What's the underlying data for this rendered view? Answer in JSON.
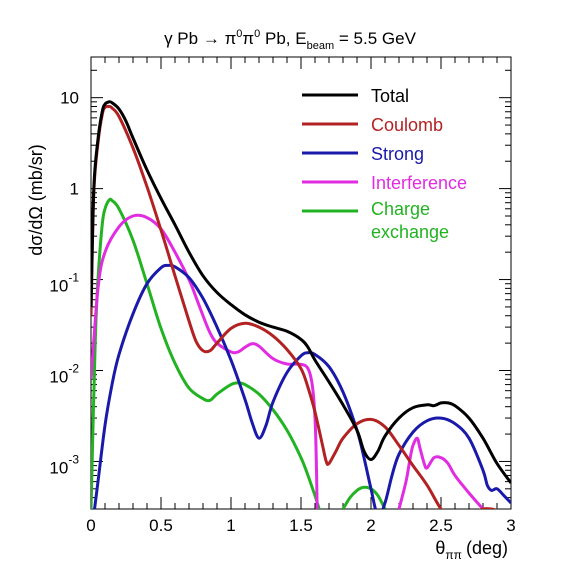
{
  "chart_data": {
    "type": "line",
    "title": {
      "gamma": "γ",
      "pb1": "Pb",
      "arrow": "→",
      "pi1": "π",
      "sup1": "0",
      "pi2": "π",
      "sup2": "0",
      "pb2": "Pb,",
      "e": "E",
      "beam": "beam",
      "rest": "= 5.5 GeV"
    },
    "ylabel": "dσ/dΩ (mb/sr)",
    "xlabel": {
      "theta": "θ",
      "sub": "ππ",
      "unit": "(deg)"
    },
    "xlim": [
      0,
      3
    ],
    "ylim": [
      0.0003,
      28
    ],
    "yscale": "log",
    "x_ticks": [
      {
        "value": 0,
        "label": "0"
      },
      {
        "value": 0.5,
        "label": "0.5"
      },
      {
        "value": 1,
        "label": "1"
      },
      {
        "value": 1.5,
        "label": "1.5"
      },
      {
        "value": 2,
        "label": "2"
      },
      {
        "value": 2.5,
        "label": "2.5"
      },
      {
        "value": 3,
        "label": "3"
      }
    ],
    "y_ticks": [
      {
        "value": 10,
        "label": "10",
        "exp": ""
      },
      {
        "value": 1,
        "label": "1",
        "exp": ""
      },
      {
        "value": 0.1,
        "label": "10",
        "exp": "-1"
      },
      {
        "value": 0.01,
        "label": "10",
        "exp": "-2"
      },
      {
        "value": 0.001,
        "label": "10",
        "exp": "-3"
      }
    ],
    "legend_position": "top-right",
    "series": [
      {
        "name": "Total",
        "color": "#000000",
        "x": [
          0,
          0.02,
          0.05,
          0.08,
          0.1,
          0.13,
          0.15,
          0.2,
          0.25,
          0.3,
          0.4,
          0.5,
          0.6,
          0.7,
          0.8,
          0.9,
          1.0,
          1.1,
          1.2,
          1.3,
          1.4,
          1.5,
          1.55,
          1.6,
          1.7,
          1.8,
          1.9,
          1.95,
          2.0,
          2.05,
          2.1,
          2.2,
          2.3,
          2.4,
          2.45,
          2.5,
          2.55,
          2.6,
          2.7,
          2.8,
          2.9,
          3.0
        ],
        "y": [
          0.05,
          1,
          3.5,
          7,
          8.5,
          9,
          8.8,
          7.5,
          5.5,
          3.6,
          1.6,
          0.78,
          0.4,
          0.2,
          0.11,
          0.072,
          0.053,
          0.041,
          0.034,
          0.03,
          0.027,
          0.022,
          0.018,
          0.013,
          0.0075,
          0.0042,
          0.0022,
          0.0013,
          0.00105,
          0.0013,
          0.0019,
          0.003,
          0.0039,
          0.0042,
          0.0041,
          0.0044,
          0.0044,
          0.0041,
          0.003,
          0.0018,
          0.00095,
          0.00058
        ]
      },
      {
        "name": "Coulomb",
        "color": "#b22222",
        "x": [
          0,
          0.02,
          0.05,
          0.08,
          0.1,
          0.13,
          0.15,
          0.2,
          0.3,
          0.4,
          0.5,
          0.6,
          0.7,
          0.75,
          0.8,
          0.85,
          0.9,
          1.0,
          1.1,
          1.2,
          1.3,
          1.4,
          1.5,
          1.55,
          1.6,
          1.65,
          1.68,
          1.7,
          1.75,
          1.8,
          1.9,
          2.0,
          2.1,
          2.2,
          2.3,
          2.4,
          2.5,
          2.6,
          2.7,
          2.8,
          2.9,
          3.0
        ],
        "y": [
          0.04,
          0.9,
          3.2,
          6.5,
          7.8,
          8,
          7.7,
          6.2,
          2.8,
          1.05,
          0.35,
          0.11,
          0.035,
          0.021,
          0.0165,
          0.0165,
          0.02,
          0.029,
          0.033,
          0.03,
          0.024,
          0.017,
          0.0105,
          0.0065,
          0.0035,
          0.0016,
          0.001,
          0.00095,
          0.0013,
          0.0018,
          0.0026,
          0.0029,
          0.0024,
          0.0015,
          0.0009,
          0.00055,
          0.0003,
          0.0002,
          0.00025,
          0.0003,
          0.00029,
          0.00025
        ]
      },
      {
        "name": "Strong",
        "color": "#1a1aaa",
        "x": [
          0,
          0.05,
          0.1,
          0.15,
          0.2,
          0.3,
          0.4,
          0.5,
          0.55,
          0.6,
          0.7,
          0.8,
          0.9,
          1.0,
          1.1,
          1.15,
          1.2,
          1.25,
          1.3,
          1.4,
          1.5,
          1.55,
          1.6,
          1.7,
          1.8,
          1.9,
          1.95,
          2.0,
          2.05,
          2.1,
          2.15,
          2.2,
          2.3,
          2.4,
          2.5,
          2.6,
          2.7,
          2.8,
          2.83,
          2.86,
          2.9,
          2.95,
          3.0
        ],
        "y": [
          0.00015,
          0.0006,
          0.0025,
          0.007,
          0.015,
          0.042,
          0.09,
          0.135,
          0.143,
          0.138,
          0.105,
          0.062,
          0.03,
          0.013,
          0.0048,
          0.0027,
          0.0018,
          0.0025,
          0.0045,
          0.0095,
          0.0145,
          0.0157,
          0.015,
          0.011,
          0.0058,
          0.0022,
          0.0011,
          0.0005,
          0.00025,
          0.00035,
          0.0007,
          0.0012,
          0.0021,
          0.0028,
          0.003,
          0.0026,
          0.0018,
          0.0008,
          0.00055,
          0.00048,
          0.0005,
          0.00042,
          0.00035
        ]
      },
      {
        "name": "Interference",
        "color": "#e12ce1",
        "x": [
          0,
          0.05,
          0.1,
          0.2,
          0.3,
          0.4,
          0.5,
          0.6,
          0.7,
          0.75,
          0.8,
          0.85,
          0.9,
          1.0,
          1.05,
          1.1,
          1.15,
          1.2,
          1.3,
          1.4,
          1.5,
          1.55,
          1.58,
          1.6,
          1.61,
          1.615
        ],
        "y": [
          0.008,
          0.08,
          0.2,
          0.38,
          0.5,
          0.48,
          0.36,
          0.2,
          0.1,
          0.064,
          0.04,
          0.026,
          0.02,
          0.016,
          0.016,
          0.018,
          0.0197,
          0.0185,
          0.0135,
          0.0118,
          0.0117,
          0.0105,
          0.007,
          0.003,
          0.0009,
          0.0003
        ],
        "x2": [
          2.2,
          2.25,
          2.28,
          2.3,
          2.33,
          2.35,
          2.38,
          2.4,
          2.45,
          2.5,
          2.55,
          2.6,
          2.7,
          2.8,
          2.85
        ],
        "y2": [
          0.0003,
          0.0006,
          0.0011,
          0.0015,
          0.0018,
          0.0014,
          0.00095,
          0.00085,
          0.0011,
          0.0011,
          0.00095,
          0.0007,
          0.00045,
          0.0003,
          0.00025
        ]
      },
      {
        "name": "Charge exchange",
        "color": "#22b322",
        "x": [
          0,
          0.03,
          0.05,
          0.08,
          0.1,
          0.13,
          0.15,
          0.2,
          0.3,
          0.4,
          0.5,
          0.6,
          0.7,
          0.8,
          0.85,
          0.9,
          1.0,
          1.05,
          1.1,
          1.2,
          1.3,
          1.4,
          1.5,
          1.55,
          1.6,
          1.63,
          1.65
        ],
        "y": [
          0.0003,
          0.02,
          0.1,
          0.4,
          0.6,
          0.75,
          0.74,
          0.6,
          0.27,
          0.09,
          0.029,
          0.012,
          0.0064,
          0.0049,
          0.0047,
          0.0055,
          0.007,
          0.0073,
          0.007,
          0.0055,
          0.0037,
          0.0022,
          0.0011,
          0.0007,
          0.00042,
          0.0003,
          0.00025
        ],
        "x2": [
          1.8,
          1.85,
          1.9,
          1.95,
          2.0,
          2.05,
          2.1
        ],
        "y2": [
          0.0003,
          0.0004,
          0.00048,
          0.00052,
          0.0005,
          0.00042,
          0.0003
        ]
      }
    ],
    "legend": {
      "total": "Total",
      "coulomb": "Coulomb",
      "strong": "Strong",
      "interference": "Interference",
      "charge_line1": "Charge",
      "charge_line2": "exchange"
    }
  }
}
